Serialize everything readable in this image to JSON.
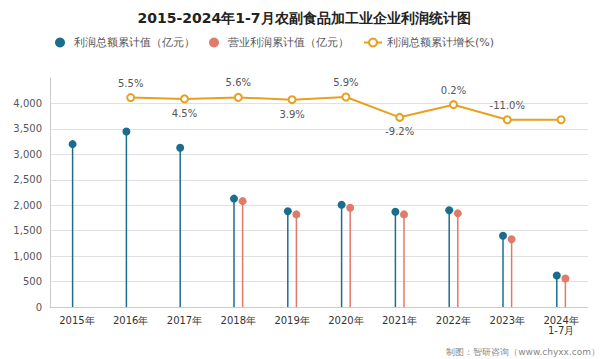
{
  "chart_data": {
    "type": "lollipop",
    "title": "2015-2024年1-7月农副食品加工业企业利润统计图",
    "categories": [
      "2015年",
      "2016年",
      "2017年",
      "2018年",
      "2019年",
      "2020年",
      "2021年",
      "2022年",
      "2023年",
      "2024年\n1-7月"
    ],
    "series": [
      {
        "name": "利润总额累计值（亿元）",
        "type": "lollipop",
        "color": "#1B6D8E",
        "marker": "o",
        "values": [
          3200,
          3450,
          3130,
          2130,
          1880,
          2010,
          1870,
          1900,
          1400,
          620
        ]
      },
      {
        "name": "营业利润累计值（亿元）",
        "type": "lollipop",
        "color": "#E07B6A",
        "marker": "o",
        "values": [
          null,
          null,
          null,
          2080,
          1820,
          1950,
          1820,
          1840,
          1330,
          560
        ]
      },
      {
        "name": "利润总额累计增长(%)",
        "type": "line",
        "axis": "y2",
        "color": "#E8A020",
        "marker": "o",
        "data_labels": true,
        "values": [
          null,
          5.5,
          4.5,
          5.6,
          3.9,
          5.9,
          -9.2,
          0.2,
          -11.0,
          -11.0
        ],
        "value_labels": [
          null,
          "5.5%",
          "4.5%",
          "5.6%",
          "3.9%",
          "5.9%",
          "-9.2%",
          "0.2%",
          "-11.0%",
          null
        ]
      }
    ],
    "ylim": [
      0,
      4500
    ],
    "yticks": [
      0,
      500,
      1000,
      1500,
      2000,
      2500,
      3000,
      3500,
      4000
    ],
    "y2lim": [
      -150,
      20
    ],
    "grid": true,
    "legend": "upper left",
    "annotations": [
      "制图：智研咨询（www.chyxx.com）"
    ]
  }
}
